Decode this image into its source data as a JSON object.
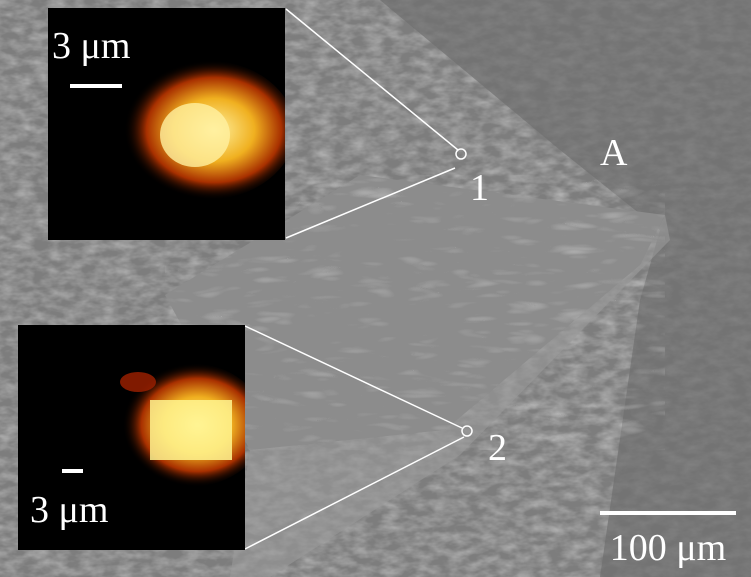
{
  "insets": [
    {
      "scale_label": "3 μm"
    },
    {
      "scale_label": "3 μm"
    }
  ],
  "region_label": "A",
  "points": [
    {
      "label": "1"
    },
    {
      "label": "2"
    }
  ],
  "scale_bar": {
    "label": "100 μm"
  }
}
